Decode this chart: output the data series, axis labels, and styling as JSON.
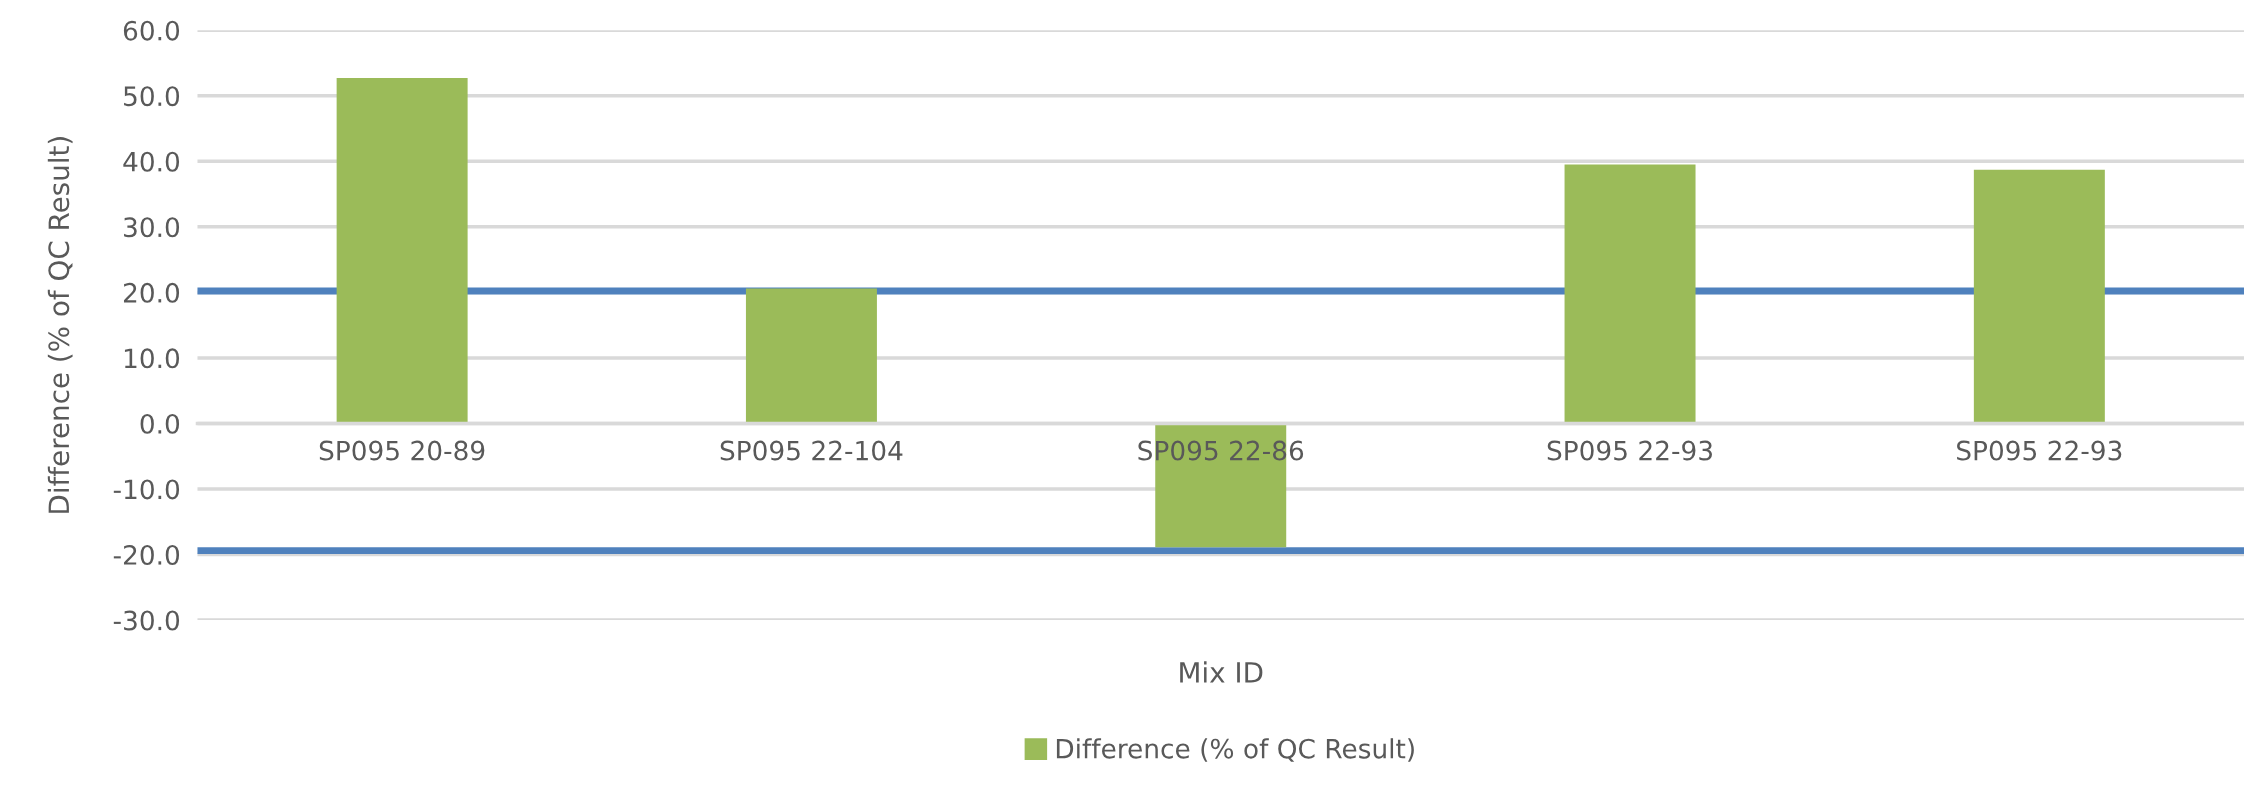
{
  "chart_data": {
    "type": "bar",
    "xlabel": "Mix ID",
    "ylabel": "Difference (% of QC Result)",
    "categories": [
      "SP095 20-89",
      "SP095 22-104",
      "SP095 22-86",
      "SP095 22-93",
      "SP095 22-93"
    ],
    "series": [
      {
        "name": "Difference (% of QC Result)",
        "color": "#9bbb59",
        "values": [
          52.7,
          20.6,
          -18.9,
          39.5,
          38.7
        ]
      }
    ],
    "ylim": [
      -30,
      60
    ],
    "yticks": [
      {
        "value": -30,
        "label": "-30.0"
      },
      {
        "value": -20,
        "label": "-20.0"
      },
      {
        "value": -10,
        "label": "-10.0"
      },
      {
        "value": 0,
        "label": "0.0"
      },
      {
        "value": 10,
        "label": "10.0"
      },
      {
        "value": 20,
        "label": "20.0"
      },
      {
        "value": 30,
        "label": "30.0"
      },
      {
        "value": 40,
        "label": "40.0"
      },
      {
        "value": 50,
        "label": "50.0"
      },
      {
        "value": 60,
        "label": "60.0"
      }
    ],
    "ref_lines": [
      {
        "axis": "y",
        "value": 20.2,
        "color": "#4f81bd"
      },
      {
        "axis": "y",
        "value": -19.4,
        "color": "#4f81bd"
      }
    ],
    "grid": "y",
    "legend": "bottom"
  }
}
